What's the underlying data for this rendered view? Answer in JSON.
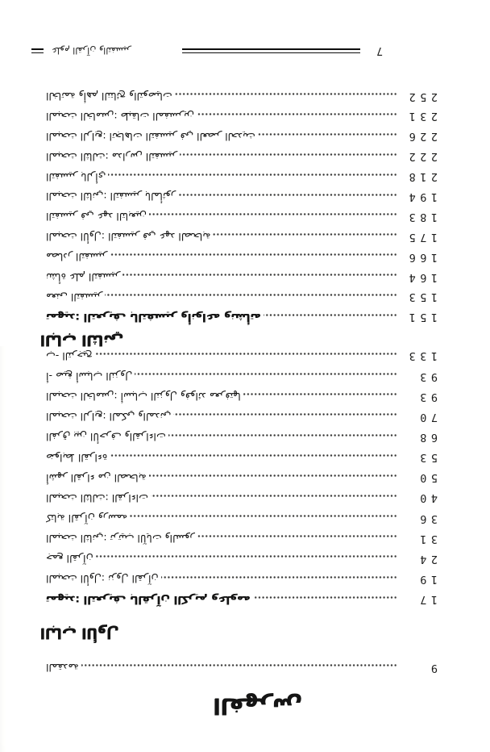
{
  "page": {
    "calligraphic_title": "الفهرس",
    "footer": {
      "page_number": "7",
      "book_title": "علوم القرآن والتفسير"
    }
  },
  "toc": {
    "front_matter": [
      {
        "title": "المقدمة",
        "page": "9",
        "bold": false
      }
    ],
    "sections": [
      {
        "heading": "الباب الأول",
        "entries": [
          {
            "title": "تمهيد: التعريف بالقرآن الكريم وعلومه",
            "page": "17",
            "bold": true
          },
          {
            "title": "المبحث الأول: نزول القرآن",
            "page": "19",
            "bold": false
          },
          {
            "title": "جمع القرآن",
            "page": "24",
            "bold": false
          },
          {
            "title": "المبحث الثاني: ترتيب الآيات والسور",
            "page": "31",
            "bold": false
          },
          {
            "title": "كتابة القرآن ورسمه",
            "page": "36",
            "bold": false
          },
          {
            "title": "المبحث الثالث: القراءات",
            "page": "40",
            "bold": false
          },
          {
            "title": "أشهر القراء من الصحابة",
            "page": "50",
            "bold": false
          },
          {
            "title": "ضوابط القراءة",
            "page": "53",
            "bold": false
          },
          {
            "title": "الفرق بين الأحرف والقراءات",
            "page": "68",
            "bold": false
          },
          {
            "title": "المبحث الرابع: المكي والمدني",
            "page": "70",
            "bold": false
          },
          {
            "title": "المبحث الخامس: أسباب النزول وفوائد معرفتها",
            "page": "93",
            "bold": false
          },
          {
            "title": "أ- صيغ أسباب النزول",
            "page": "93",
            "bold": false
          },
          {
            "title": "ب- الترجيح",
            "page": "133",
            "bold": false
          }
        ]
      },
      {
        "heading": "الباب الثاني",
        "entries": [
          {
            "title": "تمهيد: التعريف بالتفسير وأنواعه ونشأته",
            "page": "151",
            "bold": true
          },
          {
            "title": "معنى التفسير",
            "page": "153",
            "bold": false
          },
          {
            "title": "نشأة علم التفسير",
            "page": "164",
            "bold": false
          },
          {
            "title": "مصادر التفسير",
            "page": "166",
            "bold": false
          },
          {
            "title": "المبحث الأول: التفسير في عهد الصحابة",
            "page": "175",
            "bold": false
          },
          {
            "title": "التفسير في عهد التابعين",
            "page": "183",
            "bold": false
          },
          {
            "title": "المبحث الثاني: التفسير بالمأثور",
            "page": "194",
            "bold": false
          },
          {
            "title": "التفسير بالرأي",
            "page": "218",
            "bold": false
          },
          {
            "title": "المبحث الثالث: مدارس التفسير",
            "page": "222",
            "bold": false
          },
          {
            "title": "المبحث الرابع: اتجاهات التفسير في العصر الحديث",
            "page": "226",
            "bold": false
          },
          {
            "title": "المبحث الخامس: طبقات المفسرين",
            "page": "231",
            "bold": false
          },
          {
            "title": "الخاتمة وأهم النتائج والتوصيات",
            "page": "252",
            "bold": false
          }
        ]
      }
    ]
  }
}
